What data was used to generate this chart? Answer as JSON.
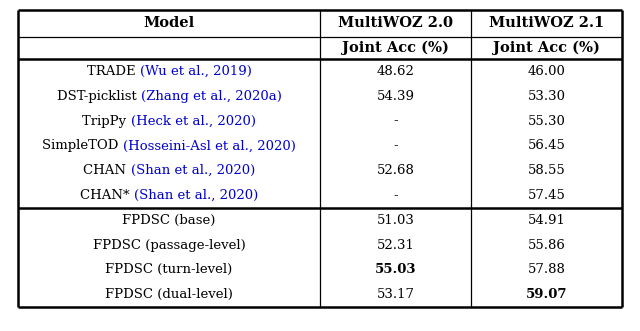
{
  "col_headers": [
    "Model",
    "MultiWOZ 2.0",
    "MultiWOZ 2.1"
  ],
  "col_subheaders": [
    "",
    "Joint Acc (%)",
    "Joint Acc (%)"
  ],
  "rows": [
    {
      "model_black": "TRADE ",
      "model_blue": "(Wu et al., 2019)",
      "col2": "48.62",
      "col3": "46.00",
      "bold_col2": false,
      "bold_col3": false,
      "section": "top"
    },
    {
      "model_black": "DST-picklist ",
      "model_blue": "(Zhang et al., 2020a)",
      "col2": "54.39",
      "col3": "53.30",
      "bold_col2": false,
      "bold_col3": false,
      "section": "top"
    },
    {
      "model_black": "TripPy ",
      "model_blue": "(Heck et al., 2020)",
      "col2": "-",
      "col3": "55.30",
      "bold_col2": false,
      "bold_col3": false,
      "section": "top"
    },
    {
      "model_black": "SimpleTOD ",
      "model_blue": "(Hosseini-Asl et al., 2020)",
      "col2": "-",
      "col3": "56.45",
      "bold_col2": false,
      "bold_col3": false,
      "section": "top"
    },
    {
      "model_black": "CHAN ",
      "model_blue": "(Shan et al., 2020)",
      "col2": "52.68",
      "col3": "58.55",
      "bold_col2": false,
      "bold_col3": false,
      "section": "top"
    },
    {
      "model_black": "CHAN* ",
      "model_blue": "(Shan et al., 2020)",
      "col2": "-",
      "col3": "57.45",
      "bold_col2": false,
      "bold_col3": false,
      "section": "top"
    },
    {
      "model_black": "FPDSC (base)",
      "model_blue": "",
      "col2": "51.03",
      "col3": "54.91",
      "bold_col2": false,
      "bold_col3": false,
      "section": "bottom"
    },
    {
      "model_black": "FPDSC (passage-level)",
      "model_blue": "",
      "col2": "52.31",
      "col3": "55.86",
      "bold_col2": false,
      "bold_col3": false,
      "section": "bottom"
    },
    {
      "model_black": "FPDSC (turn-level)",
      "model_blue": "",
      "col2": "55.03",
      "col3": "57.88",
      "bold_col2": true,
      "bold_col3": false,
      "section": "bottom"
    },
    {
      "model_black": "FPDSC (dual-level)",
      "model_blue": "",
      "col2": "53.17",
      "col3": "59.07",
      "bold_col2": false,
      "bold_col3": true,
      "section": "bottom"
    }
  ],
  "blue_color": "#0000CD",
  "black_color": "#000000",
  "bg_color": "#ffffff",
  "header_fontsize": 10.5,
  "body_fontsize": 9.5,
  "fig_width": 6.4,
  "fig_height": 3.31,
  "dpi": 100
}
